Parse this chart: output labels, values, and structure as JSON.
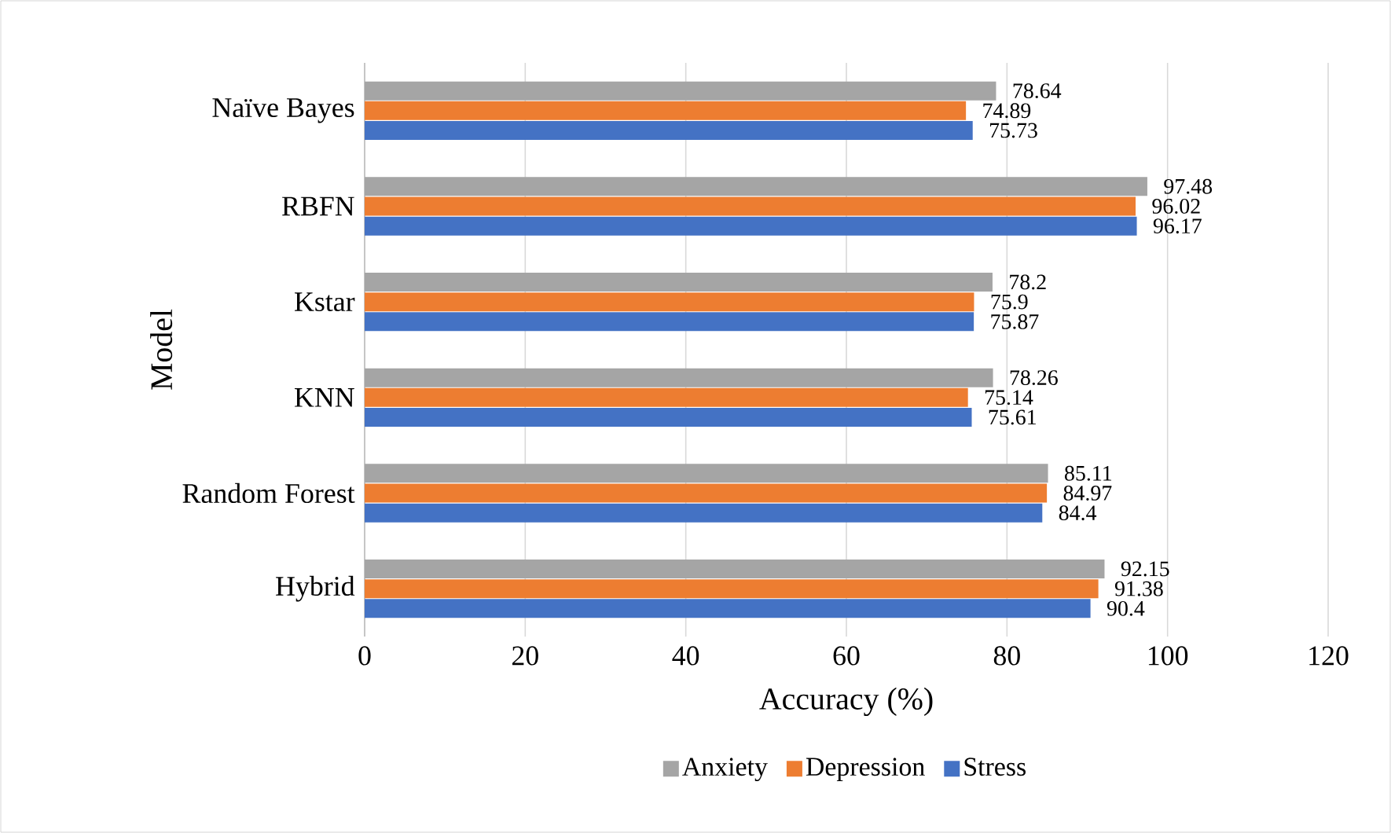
{
  "chart_data": {
    "type": "bar",
    "orientation": "horizontal",
    "xlabel": "Accuracy (%)",
    "ylabel": "Model",
    "categories": [
      "Naïve Bayes",
      "RBFN",
      "Kstar",
      "KNN",
      "Random Forest",
      "Hybrid"
    ],
    "series": [
      {
        "name": "Anxiety",
        "color": "#a5a5a5",
        "values": [
          78.64,
          97.48,
          78.2,
          78.26,
          85.11,
          92.15
        ]
      },
      {
        "name": "Depression",
        "color": "#ed7d31",
        "values": [
          74.89,
          96.02,
          75.9,
          75.14,
          84.97,
          91.38
        ]
      },
      {
        "name": "Stress",
        "color": "#4472c4",
        "values": [
          75.73,
          96.17,
          75.87,
          75.61,
          84.4,
          90.4
        ]
      }
    ],
    "xlim": [
      0,
      120
    ],
    "xticks": [
      0,
      20,
      40,
      60,
      80,
      100,
      120
    ],
    "grid": "x",
    "legend": "bottom",
    "data_labels": true
  }
}
